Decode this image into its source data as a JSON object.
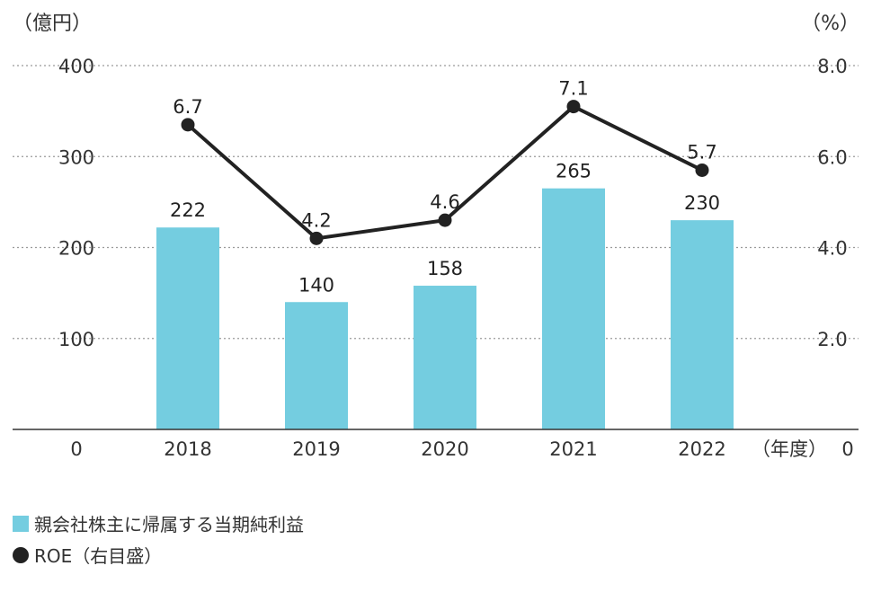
{
  "chart_data": {
    "type": "bar",
    "categories": [
      "2018",
      "2019",
      "2020",
      "2021",
      "2022"
    ],
    "left_axis": {
      "unit": "（億円）",
      "ticks": [
        0,
        100,
        200,
        300,
        400
      ],
      "tick_labels": [
        "0",
        "100",
        "200",
        "300",
        "400"
      ],
      "range": [
        0,
        400
      ]
    },
    "right_axis": {
      "unit": "（%）",
      "ticks": [
        0,
        2,
        4,
        6,
        8
      ],
      "tick_labels": [
        "0",
        "2.0",
        "4.0",
        "6.0",
        "8.0"
      ],
      "range": [
        0,
        8
      ]
    },
    "x_unit": "（年度）",
    "grid": "horizontal dotted",
    "series": [
      {
        "name": "親会社株主に帰属する当期純利益",
        "type": "bar",
        "axis": "left",
        "color": "#74cde0",
        "values": [
          222,
          140,
          158,
          265,
          230
        ],
        "labels": [
          "222",
          "140",
          "158",
          "265",
          "230"
        ]
      },
      {
        "name": "ROE（右目盛）",
        "type": "line",
        "axis": "right",
        "color": "#222222",
        "values": [
          6.7,
          4.2,
          4.6,
          7.1,
          5.7
        ],
        "labels": [
          "6.7",
          "4.2",
          "4.6",
          "7.1",
          "5.7"
        ]
      }
    ],
    "legend_position": "bottom-left"
  }
}
